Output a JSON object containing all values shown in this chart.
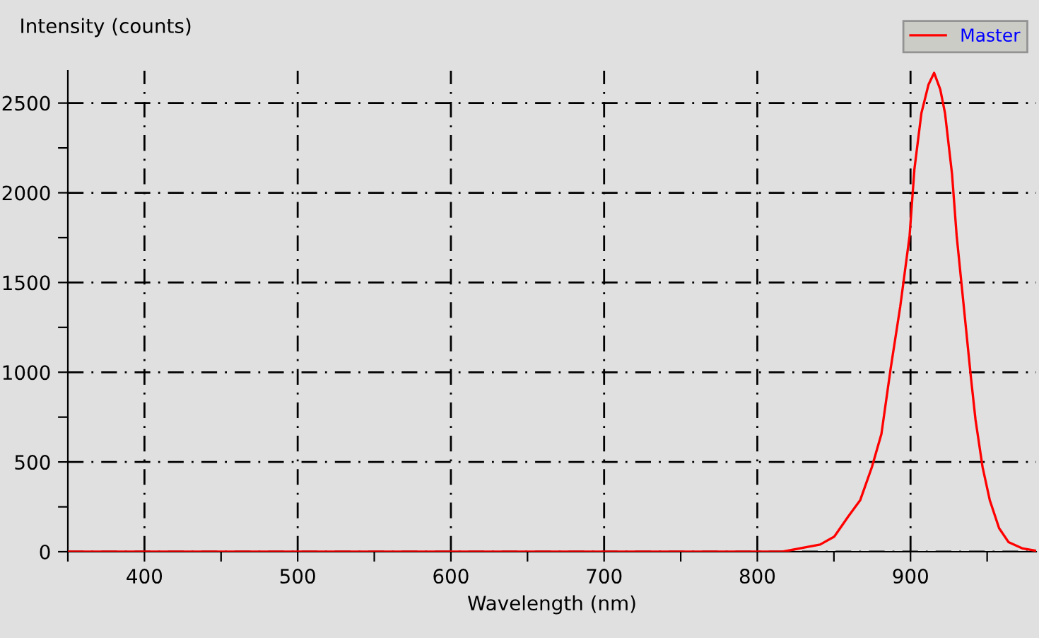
{
  "chart_data": {
    "type": "line",
    "xlabel": "Wavelength (nm)",
    "ylabel": "Intensity (counts)",
    "xlim": [
      350,
      982
    ],
    "ylim": [
      0,
      2680
    ],
    "xticks": [
      {
        "value": 350,
        "label": null
      },
      400,
      {
        "value": 450,
        "label": null
      },
      500,
      {
        "value": 550,
        "label": null
      },
      600,
      {
        "value": 650,
        "label": null
      },
      700,
      {
        "value": 750,
        "label": null
      },
      800,
      {
        "value": 850,
        "label": null
      },
      900,
      {
        "value": 950,
        "label": null
      }
    ],
    "yticks": [
      0,
      {
        "value": 250,
        "label": null
      },
      500,
      {
        "value": 750,
        "label": null
      },
      1000,
      {
        "value": 1250,
        "label": null
      },
      1500,
      {
        "value": 1750,
        "label": null
      },
      2000,
      {
        "value": 2250,
        "label": null
      },
      2500
    ],
    "grid": true,
    "legend": "top right",
    "marker": "none",
    "line_style": "solid",
    "series": [
      {
        "name": "Master",
        "color": "#ff0000",
        "x": [
          350,
          400,
          500,
          600,
          700,
          785.6,
          816.4,
          831.8,
          841,
          850.2,
          859.5,
          867.2,
          874.8,
          881,
          887.1,
          893.3,
          899.4,
          902.5,
          907.1,
          911.7,
          915.4,
          919.4,
          922.5,
          927.1,
          930.1,
          933.2,
          936.3,
          939.4,
          942.4,
          947.0,
          951.7,
          957.8,
          964,
          973.2,
          982
        ],
        "values": [
          0,
          0,
          0,
          0,
          0,
          0,
          0,
          25,
          40,
          84,
          198,
          288,
          472,
          656,
          1025,
          1367,
          1761,
          2129,
          2444,
          2602,
          2668,
          2576,
          2444,
          2103,
          1761,
          1498,
          1235,
          972,
          736,
          472,
          288,
          131,
          53,
          18,
          5
        ]
      }
    ]
  }
}
